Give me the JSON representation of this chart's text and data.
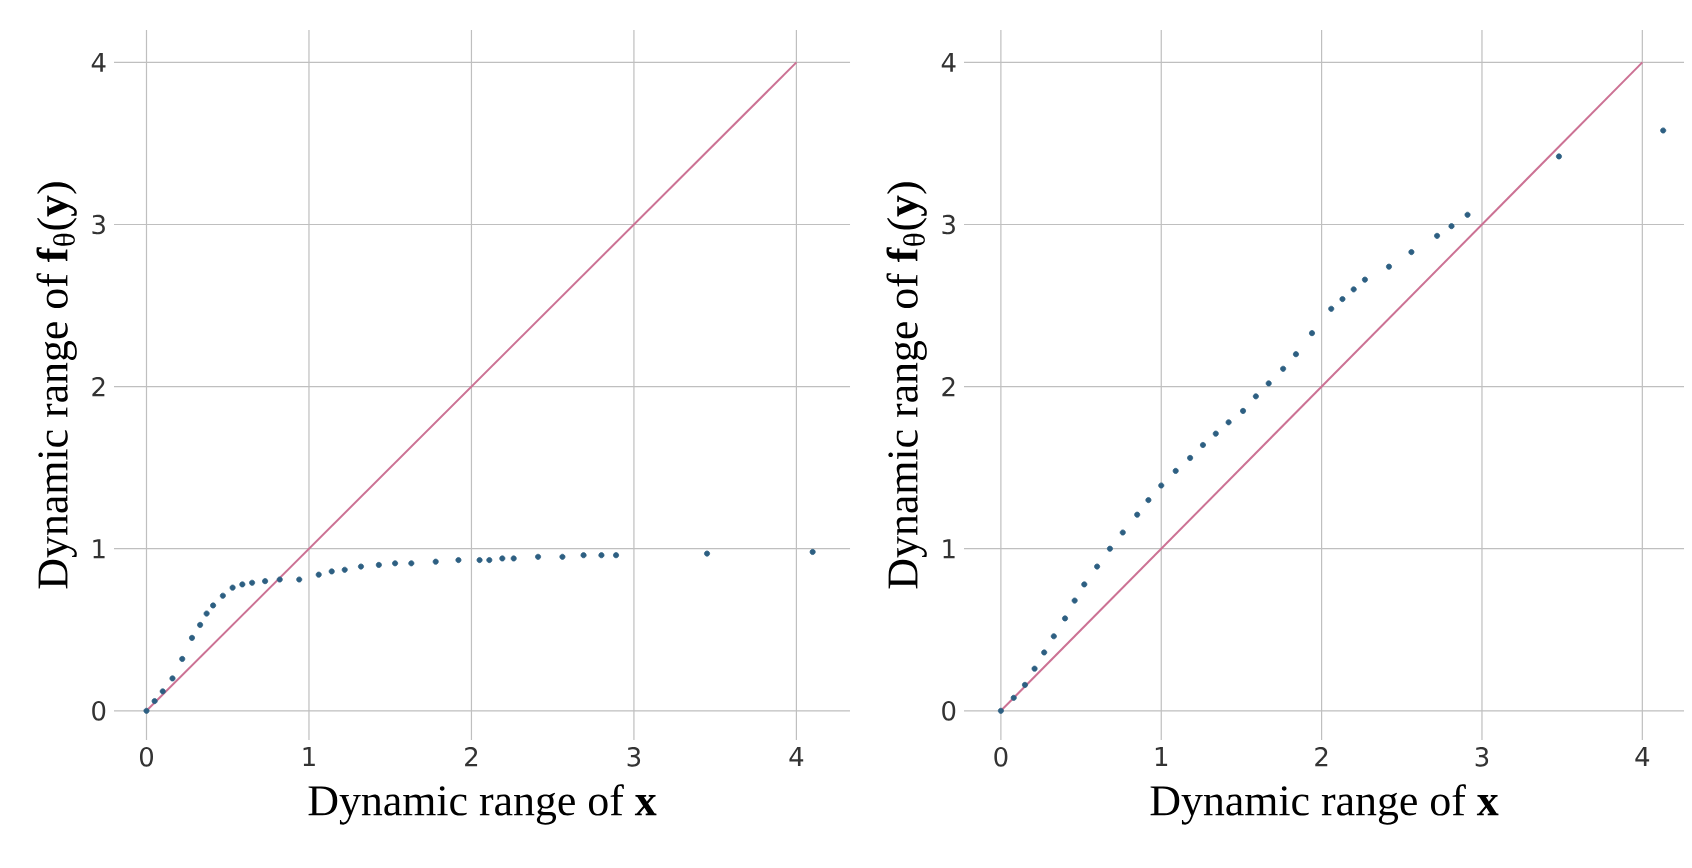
{
  "chart_data": [
    {
      "type": "scatter",
      "xlabel": "Dynamic range of **x**",
      "ylabel": "Dynamic range of **f**$_{θ}$(**y**)",
      "xlim": [
        -0.2,
        4.33
      ],
      "ylim": [
        -0.18,
        4.2
      ],
      "xticks": [
        0,
        1,
        2,
        3,
        4
      ],
      "yticks": [
        0,
        1,
        2,
        3,
        4
      ],
      "grid": true,
      "series": [
        {
          "type": "scatter",
          "marker": "circle",
          "color": "#2d5f82",
          "x": [
            0,
            0.05,
            0.1,
            0.16,
            0.22,
            0.28,
            0.33,
            0.37,
            0.41,
            0.47,
            0.53,
            0.59,
            0.65,
            0.73,
            0.82,
            0.94,
            1.06,
            1.14,
            1.22,
            1.32,
            1.43,
            1.53,
            1.63,
            1.78,
            1.92,
            2.05,
            2.11,
            2.19,
            2.26,
            2.41,
            2.56,
            2.69,
            2.8,
            2.89,
            3.45,
            4.1
          ],
          "values": [
            0,
            0.06,
            0.12,
            0.2,
            0.32,
            0.45,
            0.53,
            0.6,
            0.65,
            0.71,
            0.76,
            0.78,
            0.79,
            0.8,
            0.81,
            0.81,
            0.84,
            0.86,
            0.87,
            0.89,
            0.9,
            0.91,
            0.91,
            0.92,
            0.93,
            0.93,
            0.93,
            0.94,
            0.94,
            0.95,
            0.95,
            0.96,
            0.96,
            0.96,
            0.97,
            0.98
          ]
        },
        {
          "type": "line",
          "marker": "none",
          "color": "#cc7294",
          "x": [
            0,
            4
          ],
          "values": [
            0,
            4
          ]
        }
      ]
    },
    {
      "type": "scatter",
      "xlabel": "Dynamic range of **x**",
      "ylabel": "Dynamic range of **f**$_{θ}$(**y**)",
      "xlim": [
        -0.23,
        4.26
      ],
      "ylim": [
        -0.18,
        4.2
      ],
      "xticks": [
        0,
        1,
        2,
        3,
        4
      ],
      "yticks": [
        0,
        1,
        2,
        3,
        4
      ],
      "grid": true,
      "series": [
        {
          "type": "scatter",
          "marker": "circle",
          "color": "#2d5f82",
          "x": [
            0,
            0.08,
            0.15,
            0.21,
            0.27,
            0.33,
            0.4,
            0.46,
            0.52,
            0.6,
            0.68,
            0.76,
            0.85,
            0.92,
            1.0,
            1.09,
            1.18,
            1.26,
            1.34,
            1.42,
            1.51,
            1.59,
            1.67,
            1.76,
            1.84,
            1.94,
            2.06,
            2.13,
            2.2,
            2.27,
            2.42,
            2.56,
            2.72,
            2.81,
            2.91,
            3.48,
            4.13
          ],
          "values": [
            0,
            0.08,
            0.16,
            0.26,
            0.36,
            0.46,
            0.57,
            0.68,
            0.78,
            0.89,
            1.0,
            1.1,
            1.21,
            1.3,
            1.39,
            1.48,
            1.56,
            1.64,
            1.71,
            1.78,
            1.85,
            1.94,
            2.02,
            2.11,
            2.2,
            2.33,
            2.48,
            2.54,
            2.6,
            2.66,
            2.74,
            2.83,
            2.93,
            2.99,
            3.06,
            3.42,
            3.58
          ]
        },
        {
          "type": "line",
          "marker": "none",
          "color": "#cc7294",
          "x": [
            0,
            4
          ],
          "values": [
            0,
            4
          ]
        }
      ]
    }
  ]
}
